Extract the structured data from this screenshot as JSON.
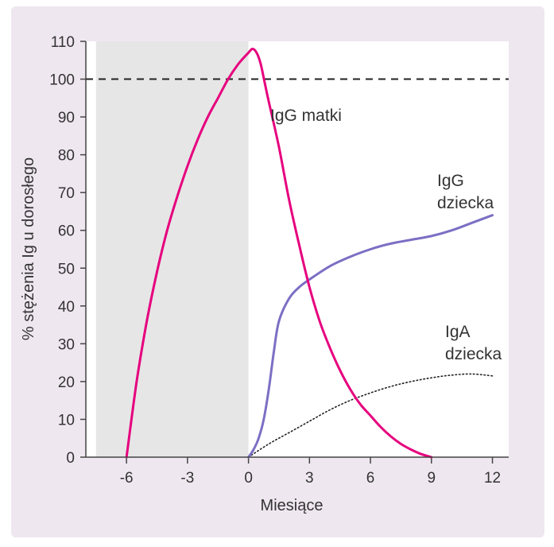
{
  "colors": {
    "background": "#efe7f0",
    "plot_bg": "#ffffff",
    "shade": "#e6e6e6",
    "maternal_igg": "#e6007e",
    "infant_igg": "#7b6fc4",
    "infant_iga": "#222222",
    "reference_line": "#222222",
    "axis": "#444444"
  },
  "chart_data": {
    "type": "line",
    "xlabel": "Miesiące",
    "ylabel": "% stężenia Ig u dorosłego",
    "xlim": [
      -8,
      12.8
    ],
    "ylim": [
      0,
      110
    ],
    "xticks": [
      -6,
      -3,
      0,
      3,
      6,
      9,
      12
    ],
    "yticks": [
      0,
      10,
      20,
      30,
      40,
      50,
      60,
      70,
      80,
      90,
      100,
      110
    ],
    "shaded_region": {
      "x": [
        -7.5,
        0
      ]
    },
    "reference_line": {
      "y": 100,
      "style": "dashed"
    },
    "series": [
      {
        "key": "maternal",
        "line": "solid",
        "x": [
          -6,
          -5.5,
          -5,
          -4.5,
          -4,
          -3.5,
          -3,
          -2.5,
          -2,
          -1.5,
          -1,
          -0.5,
          0,
          0.2,
          0.4,
          0.6,
          0.8,
          1,
          1.5,
          2,
          2.5,
          3,
          3.5,
          4,
          4.5,
          5,
          5.5,
          6,
          6.5,
          7,
          7.5,
          8,
          8.5,
          9
        ],
        "values": [
          0,
          20,
          36,
          49,
          60,
          69,
          77,
          84,
          90,
          95,
          100,
          104,
          107,
          108,
          107,
          104,
          99,
          94,
          82,
          68,
          56,
          45,
          36,
          29,
          23,
          18,
          14,
          11,
          8,
          5.5,
          3.5,
          2,
          0.8,
          0
        ]
      },
      {
        "key": "infant_igg",
        "line": "solid",
        "x": [
          0,
          0.25,
          0.5,
          0.75,
          1,
          1.25,
          1.5,
          2,
          2.5,
          3,
          4,
          5,
          6,
          7,
          8,
          9,
          10,
          11,
          12
        ],
        "values": [
          0,
          2,
          5,
          10,
          18,
          28,
          36,
          42,
          45,
          47,
          50.5,
          53,
          55,
          56.5,
          57.5,
          58.5,
          60,
          62,
          64
        ]
      },
      {
        "key": "infant_iga",
        "line": "dotted",
        "x": [
          0,
          1,
          2,
          3,
          4,
          5,
          6,
          7,
          8,
          9,
          10,
          11,
          12
        ],
        "values": [
          0,
          3.5,
          6.5,
          9.5,
          12.5,
          15,
          17,
          18.7,
          20,
          21,
          21.7,
          22,
          21.5
        ]
      }
    ],
    "annotations": {
      "maternal": "IgG matki",
      "infant_igg": [
        "IgG",
        "dziecka"
      ],
      "infant_iga": [
        "IgA",
        "dziecka"
      ]
    }
  }
}
